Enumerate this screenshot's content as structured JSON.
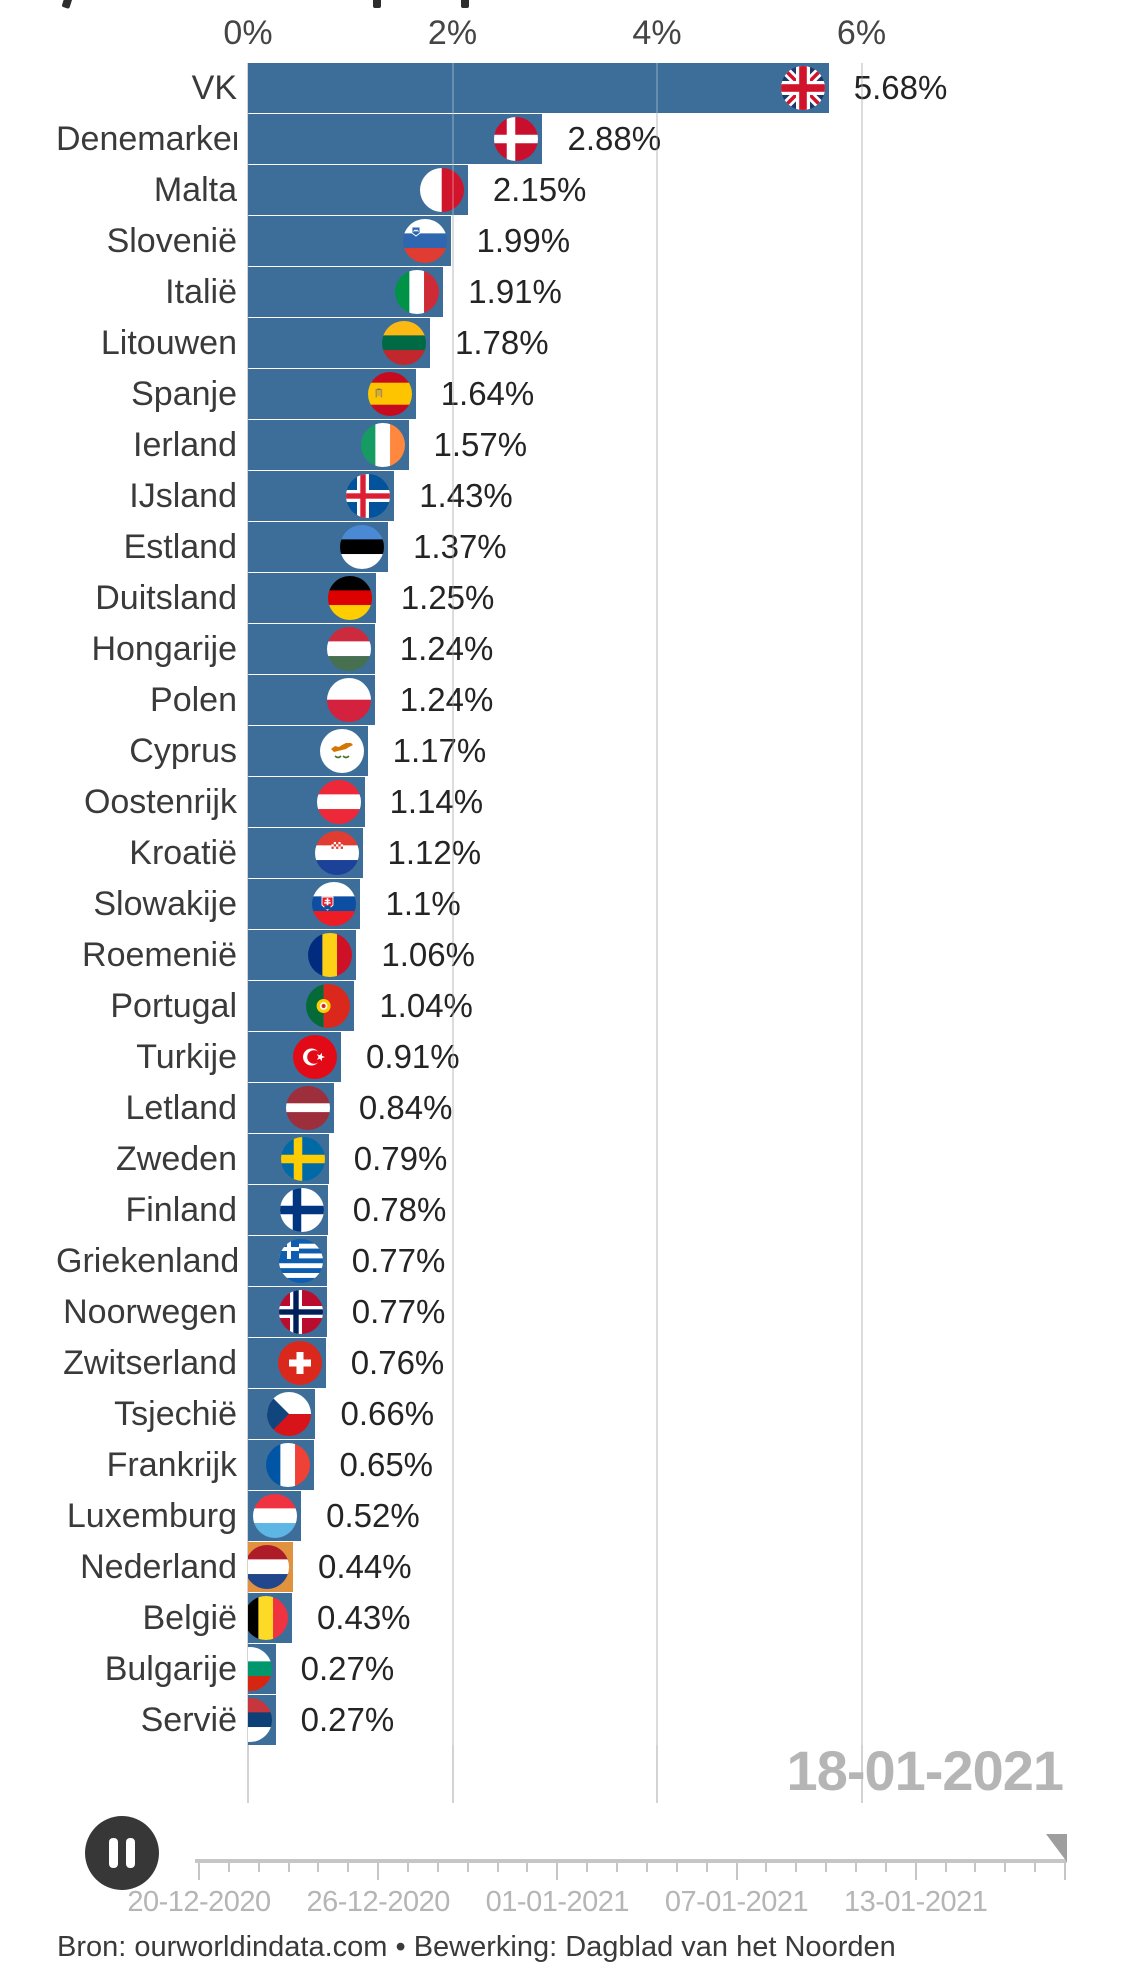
{
  "title_cropped_fragments": {
    "description": "bottom tips of a chart title cropped off at the top edge of the screenshot",
    "x_positions": [
      63,
      373,
      461
    ]
  },
  "chart_data": {
    "type": "bar",
    "orientation": "horizontal",
    "unit": "%",
    "x_axis": {
      "tick_labels": [
        "0%",
        "2%",
        "4%",
        "6%"
      ],
      "tick_values": [
        0,
        2,
        4,
        6
      ],
      "range": [
        0,
        6.8
      ],
      "gridlines": true
    },
    "bar_color": "#3d6e99",
    "highlight": {
      "country": "Nederland",
      "color": "#e1923e"
    },
    "categories": [
      "VK",
      "Denemarken",
      "Malta",
      "Slovenië",
      "Italië",
      "Litouwen",
      "Spanje",
      "Ierland",
      "IJsland",
      "Estland",
      "Duitsland",
      "Hongarije",
      "Polen",
      "Cyprus",
      "Oostenrijk",
      "Kroatië",
      "Slowakije",
      "Roemenië",
      "Portugal",
      "Turkije",
      "Letland",
      "Zweden",
      "Finland",
      "Griekenland",
      "Noorwegen",
      "Zwitserland",
      "Tsjechië",
      "Frankrijk",
      "Luxemburg",
      "Nederland",
      "België",
      "Bulgarije",
      "Servië"
    ],
    "values": [
      5.68,
      2.88,
      2.15,
      1.99,
      1.91,
      1.78,
      1.64,
      1.57,
      1.43,
      1.37,
      1.25,
      1.24,
      1.24,
      1.17,
      1.14,
      1.12,
      1.1,
      1.06,
      1.04,
      0.91,
      0.84,
      0.79,
      0.78,
      0.77,
      0.77,
      0.76,
      0.66,
      0.65,
      0.52,
      0.44,
      0.43,
      0.27,
      0.27
    ],
    "value_labels": [
      "5.68%",
      "2.88%",
      "2.15%",
      "1.99%",
      "1.91%",
      "1.78%",
      "1.64%",
      "1.57%",
      "1.43%",
      "1.37%",
      "1.25%",
      "1.24%",
      "1.24%",
      "1.17%",
      "1.14%",
      "1.12%",
      "1.1%",
      "1.06%",
      "1.04%",
      "0.91%",
      "0.84%",
      "0.79%",
      "0.78%",
      "0.77%",
      "0.77%",
      "0.76%",
      "0.66%",
      "0.65%",
      "0.52%",
      "0.44%",
      "0.43%",
      "0.27%",
      "0.27%"
    ],
    "flags": {
      "VK": {
        "k": "uk"
      },
      "Denemarken": {
        "k": "nordic",
        "bg": "#c8102e",
        "cross": "#ffffff"
      },
      "Malta": {
        "k": "v",
        "c": [
          "#ffffff",
          "#cf142b"
        ]
      },
      "Slovenië": {
        "k": "h",
        "c": [
          "#ffffff",
          "#2f66b0",
          "#e03c31"
        ],
        "badge": "slovenia"
      },
      "Italië": {
        "k": "v",
        "c": [
          "#009246",
          "#ffffff",
          "#ce2b37"
        ]
      },
      "Litouwen": {
        "k": "h",
        "c": [
          "#fdb913",
          "#006a44",
          "#c1272d"
        ]
      },
      "Spanje": {
        "k": "h",
        "c": [
          "#c60b1e",
          "#ffc400",
          "#c60b1e"
        ],
        "r": [
          1,
          2,
          1
        ],
        "badge": "spain"
      },
      "Ierland": {
        "k": "v",
        "c": [
          "#169b62",
          "#ffffff",
          "#ff883e"
        ]
      },
      "IJsland": {
        "k": "nordic",
        "bg": "#02529c",
        "cross": "#ffffff",
        "inner": "#dc1e35"
      },
      "Estland": {
        "k": "h",
        "c": [
          "#4a8ad4",
          "#000000",
          "#ffffff"
        ]
      },
      "Duitsland": {
        "k": "h",
        "c": [
          "#000000",
          "#dd0000",
          "#ffce00"
        ]
      },
      "Hongarije": {
        "k": "h",
        "c": [
          "#cd2a3e",
          "#ffffff",
          "#477050"
        ]
      },
      "Polen": {
        "k": "h",
        "c": [
          "#ffffff",
          "#d4213d"
        ]
      },
      "Cyprus": {
        "k": "cyprus"
      },
      "Oostenrijk": {
        "k": "h",
        "c": [
          "#ed2939",
          "#ffffff",
          "#ed2939"
        ]
      },
      "Kroatië": {
        "k": "h",
        "c": [
          "#e03c31",
          "#ffffff",
          "#1b4298"
        ],
        "badge": "croatia"
      },
      "Slowakije": {
        "k": "h",
        "c": [
          "#ffffff",
          "#0b4ea2",
          "#ee1c25"
        ],
        "badge": "slovakia"
      },
      "Roemenië": {
        "k": "v",
        "c": [
          "#002b7f",
          "#fcd116",
          "#ce1126"
        ]
      },
      "Portugal": {
        "k": "portugal"
      },
      "Turkije": {
        "k": "turkey"
      },
      "Letland": {
        "k": "h",
        "c": [
          "#9d2f3c",
          "#ffffff",
          "#9d2f3c"
        ],
        "r": [
          2,
          1,
          2
        ]
      },
      "Zweden": {
        "k": "nordic",
        "bg": "#006aa7",
        "cross": "#fecc02"
      },
      "Finland": {
        "k": "nordic",
        "bg": "#ffffff",
        "cross": "#003580"
      },
      "Griekenland": {
        "k": "greece"
      },
      "Noorwegen": {
        "k": "nordic",
        "bg": "#ba0c2f",
        "cross": "#ffffff",
        "inner": "#00205b"
      },
      "Zwitserland": {
        "k": "swiss"
      },
      "Tsjechië": {
        "k": "czech"
      },
      "Frankrijk": {
        "k": "v",
        "c": [
          "#0055a4",
          "#ffffff",
          "#ef4135"
        ]
      },
      "Luxemburg": {
        "k": "h",
        "c": [
          "#ef3340",
          "#ffffff",
          "#5eb6e4"
        ]
      },
      "Nederland": {
        "k": "h",
        "c": [
          "#ae1c28",
          "#ffffff",
          "#21468b"
        ]
      },
      "België": {
        "k": "v",
        "c": [
          "#000000",
          "#fdda25",
          "#ef3340"
        ]
      },
      "Bulgarije": {
        "k": "h",
        "c": [
          "#ffffff",
          "#00966e",
          "#d62612"
        ]
      },
      "Servië": {
        "k": "h",
        "c": [
          "#c6363c",
          "#0c4076",
          "#ffffff"
        ]
      }
    }
  },
  "timeline": {
    "current_date_label": "18-01-2021",
    "tick_labels": [
      "20-12-2020",
      "26-12-2020",
      "01-01-2021",
      "07-01-2021",
      "13-01-2021"
    ],
    "total_days": 29,
    "major_tick_days": [
      0,
      6,
      12,
      18,
      24,
      29
    ],
    "player_state": "playing"
  },
  "source": "Bron: ourworldindata.com • Bewerking: Dagblad van het Noorden"
}
